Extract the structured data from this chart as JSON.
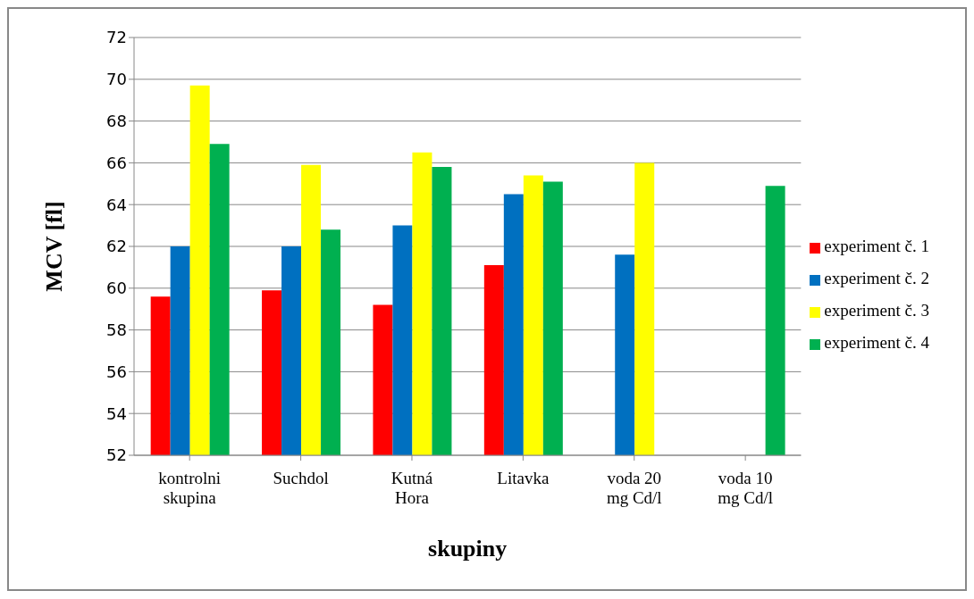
{
  "chart_data": {
    "type": "bar",
    "xlabel": "skupiny",
    "ylabel": "MCV [fl]",
    "categories": [
      "kontrolni skupina",
      "Suchdol",
      "Kutná Hora",
      "Litavka",
      "voda 20 mg Cd/l",
      "voda 10 mg Cd/l"
    ],
    "series": [
      {
        "name": "experiment č. 1",
        "color": "#ff0000",
        "values": [
          59.6,
          59.9,
          59.2,
          61.1,
          null,
          null
        ]
      },
      {
        "name": "experiment č. 2",
        "color": "#0070c0",
        "values": [
          62.0,
          62.0,
          63.0,
          64.5,
          61.6,
          null
        ]
      },
      {
        "name": "experiment č. 3",
        "color": "#ffff00",
        "values": [
          69.7,
          65.9,
          66.5,
          65.4,
          66.0,
          null
        ]
      },
      {
        "name": "experiment č. 4",
        "color": "#00b050",
        "values": [
          66.9,
          62.8,
          65.8,
          65.1,
          null,
          64.9
        ]
      }
    ],
    "ylim": [
      52,
      72
    ],
    "yticks": [
      52,
      54,
      56,
      58,
      60,
      62,
      64,
      66,
      68,
      70,
      72
    ],
    "grid": "y",
    "legend": "right"
  }
}
